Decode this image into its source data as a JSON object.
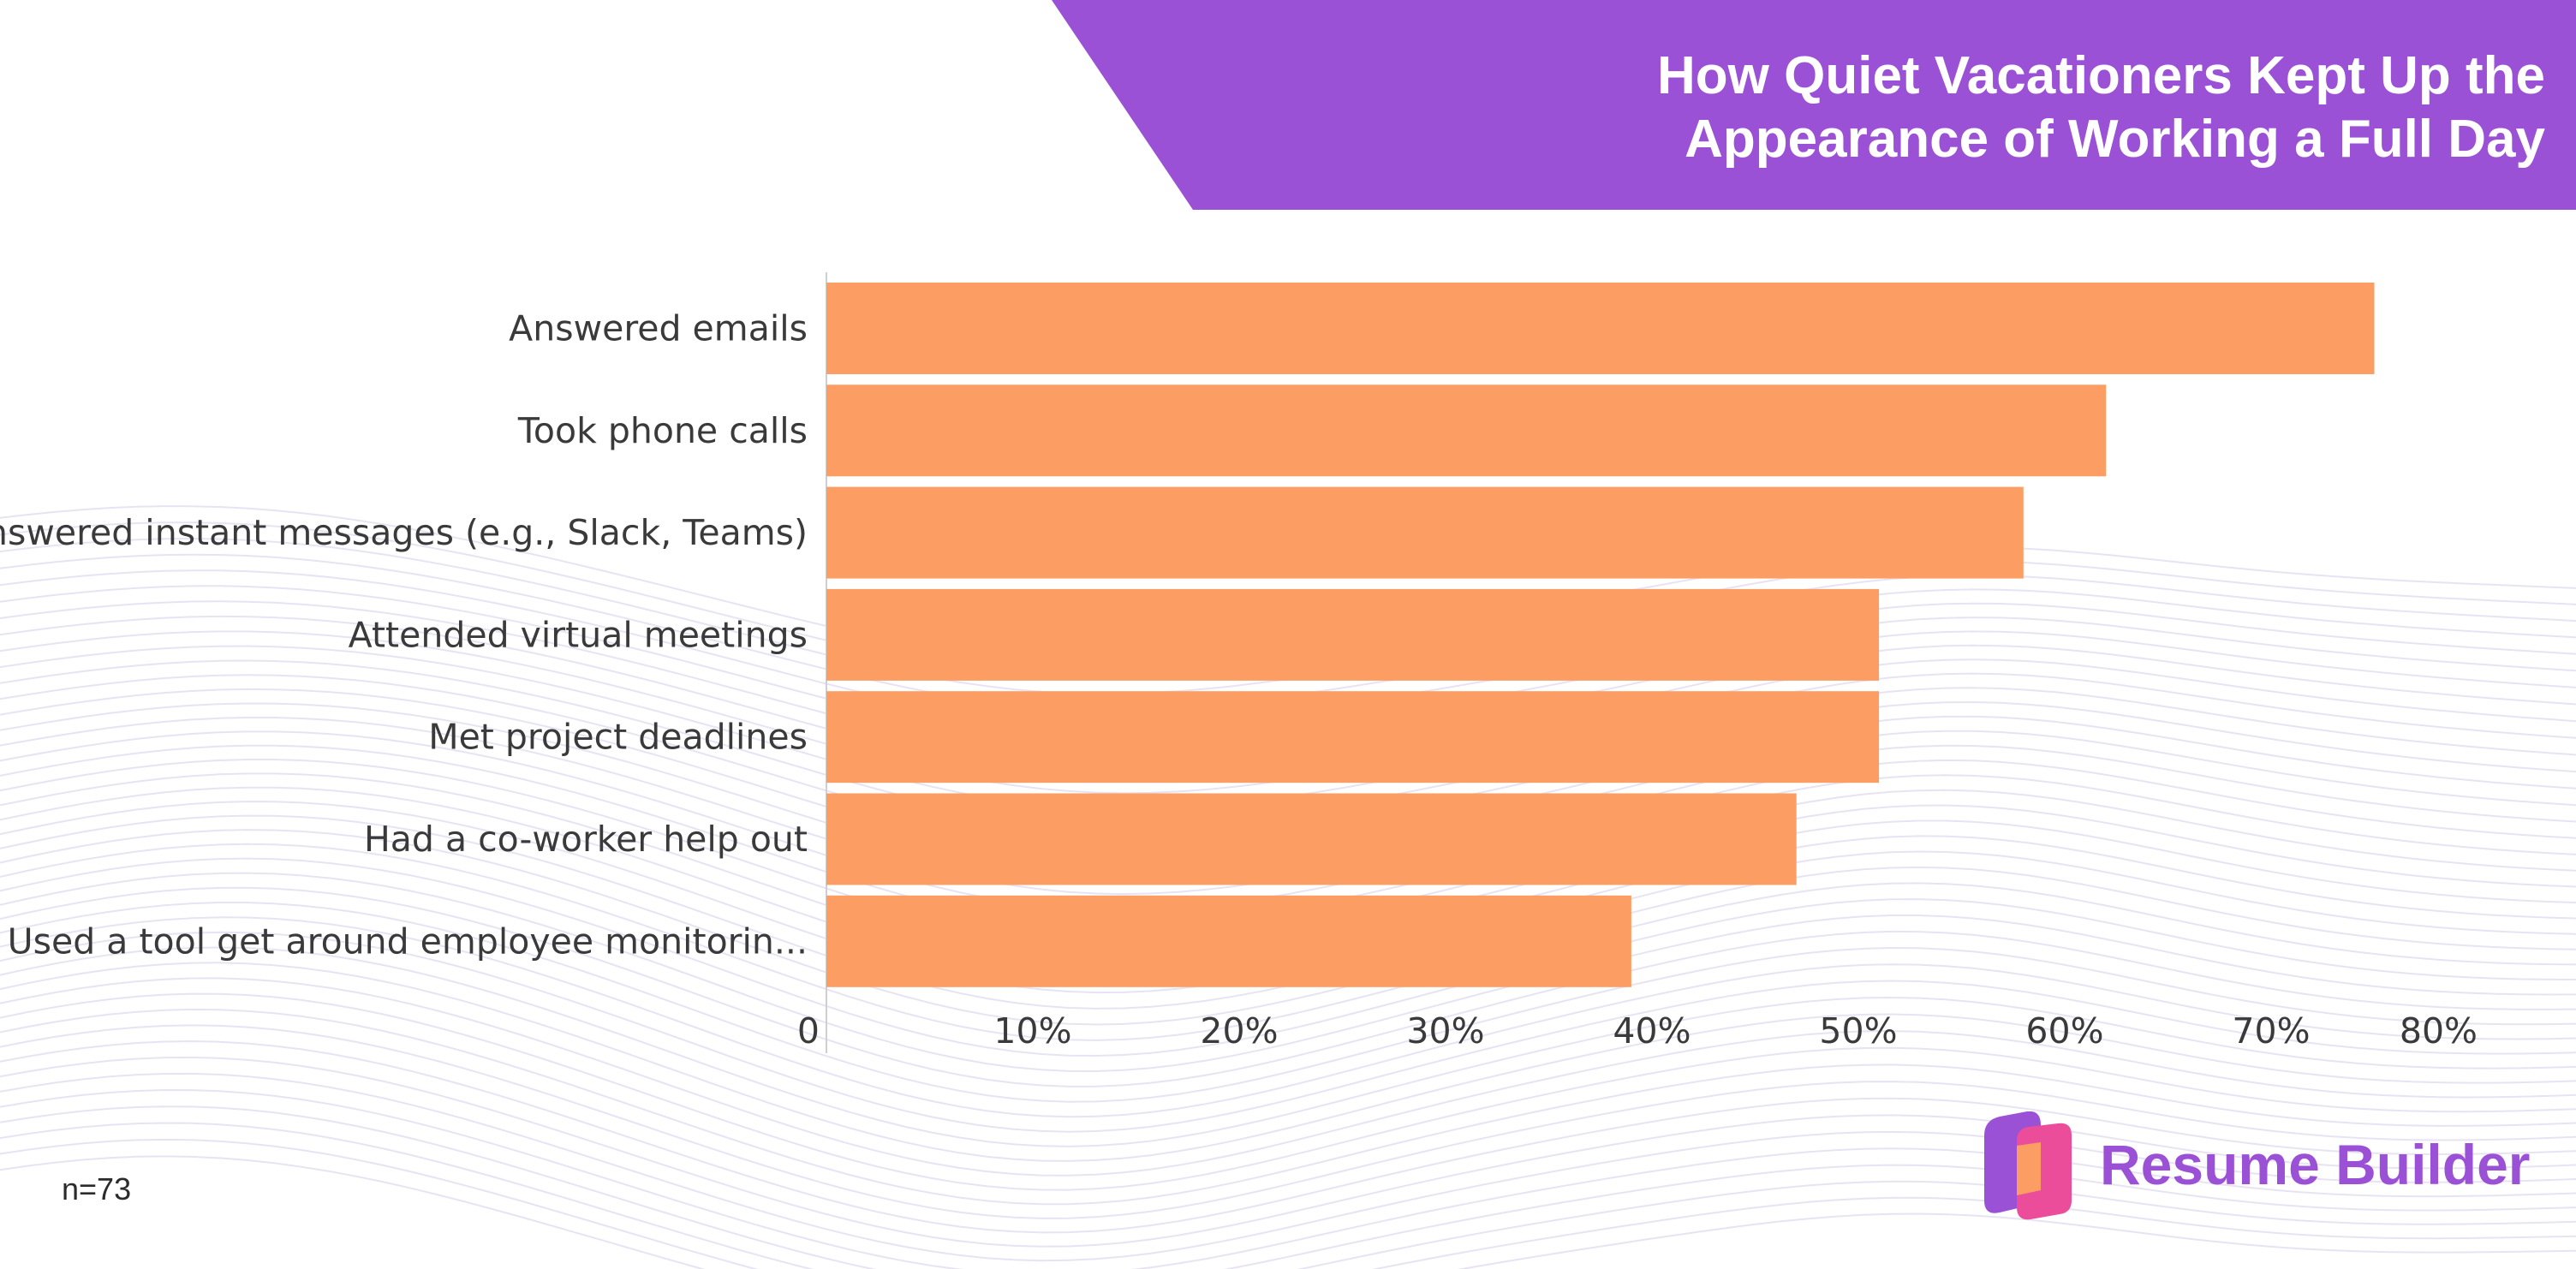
{
  "header": {
    "title": "How Quiet Vacationers Kept Up the\nAppearance of Working a Full Day",
    "banner_color": "#9b51d6"
  },
  "chart_data": {
    "type": "bar",
    "orientation": "horizontal",
    "title": "How Quiet Vacationers Kept Up the Appearance of Working a Full Day",
    "categories": [
      "Answered emails",
      "Took phone calls",
      "Answered instant messages (e.g., Slack, Teams)",
      "Attended virtual meetings",
      "Met project deadlines",
      "Had a co-worker help out",
      "Used a tool get around employee monitorin..."
    ],
    "values": [
      75,
      62,
      58,
      51,
      51,
      47,
      39
    ],
    "xlim": [
      0,
      80
    ],
    "x_ticks": [
      0,
      10,
      20,
      30,
      40,
      50,
      60,
      70,
      80
    ],
    "x_tick_labels": [
      "0",
      "10%",
      "20%",
      "30%",
      "40%",
      "50%",
      "60%",
      "70%",
      "80%"
    ],
    "xlabel": "",
    "ylabel": "",
    "grid": false,
    "legend": "none",
    "bar_color": "#fc9e63"
  },
  "footer": {
    "sample_size": "n=73",
    "brand_name": "Resume Builder",
    "brand_color": "#9b51d6",
    "logo_icon": "resume-builder-logo-icon"
  }
}
